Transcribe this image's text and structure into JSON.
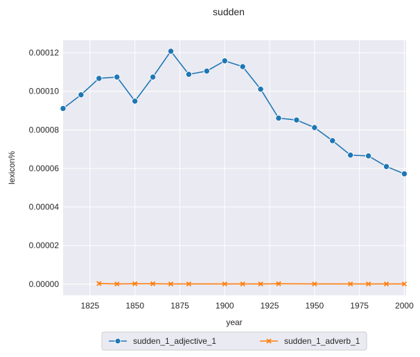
{
  "chart_data": {
    "type": "line",
    "title": "sudden",
    "xlabel": "year",
    "ylabel": "lexicon%",
    "xlim": [
      1810,
      2001
    ],
    "ylim": [
      -5.8e-06,
      0.0001265
    ],
    "x_ticks": [
      1825,
      1850,
      1875,
      1900,
      1925,
      1950,
      1975,
      2000
    ],
    "x_tick_labels": [
      "1825",
      "1850",
      "1875",
      "1900",
      "1925",
      "1950",
      "1975",
      "2000"
    ],
    "y_ticks": [
      0,
      2e-05,
      4e-05,
      6e-05,
      8e-05,
      0.0001,
      0.00012
    ],
    "y_tick_labels": [
      "0.00000",
      "0.00002",
      "0.00004",
      "0.00006",
      "0.00008",
      "0.00010",
      "0.00012"
    ],
    "grid": true,
    "legend_position": "bottom-center",
    "background_color": "#eaeaf2",
    "series": [
      {
        "name": "sudden_1_adjective_1",
        "color": "#1f77b4",
        "marker": "circle",
        "x": [
          1810,
          1820,
          1830,
          1840,
          1850,
          1860,
          1870,
          1880,
          1890,
          1900,
          1910,
          1920,
          1930,
          1940,
          1950,
          1960,
          1970,
          1980,
          1990,
          2000
        ],
        "y": [
          9.11e-05,
          9.82e-05,
          0.0001067,
          0.0001074,
          9.49e-05,
          0.0001074,
          0.0001208,
          0.0001088,
          0.0001105,
          0.0001158,
          0.0001128,
          0.0001011,
          8.61e-05,
          8.51e-05,
          8.12e-05,
          7.44e-05,
          6.69e-05,
          6.65e-05,
          6.1e-05,
          5.72e-05
        ]
      },
      {
        "name": "sudden_1_adverb_1",
        "color": "#ff7f0e",
        "marker": "x",
        "x": [
          1830,
          1840,
          1850,
          1860,
          1870,
          1880,
          1900,
          1910,
          1920,
          1930,
          1950,
          1970,
          1980,
          1990,
          2000
        ],
        "y": [
          3e-07,
          1e-07,
          2e-07,
          2e-07,
          1e-07,
          1e-07,
          1e-07,
          1e-07,
          1e-07,
          2e-07,
          1e-07,
          1e-07,
          1e-07,
          1e-07,
          1e-07
        ]
      }
    ]
  }
}
